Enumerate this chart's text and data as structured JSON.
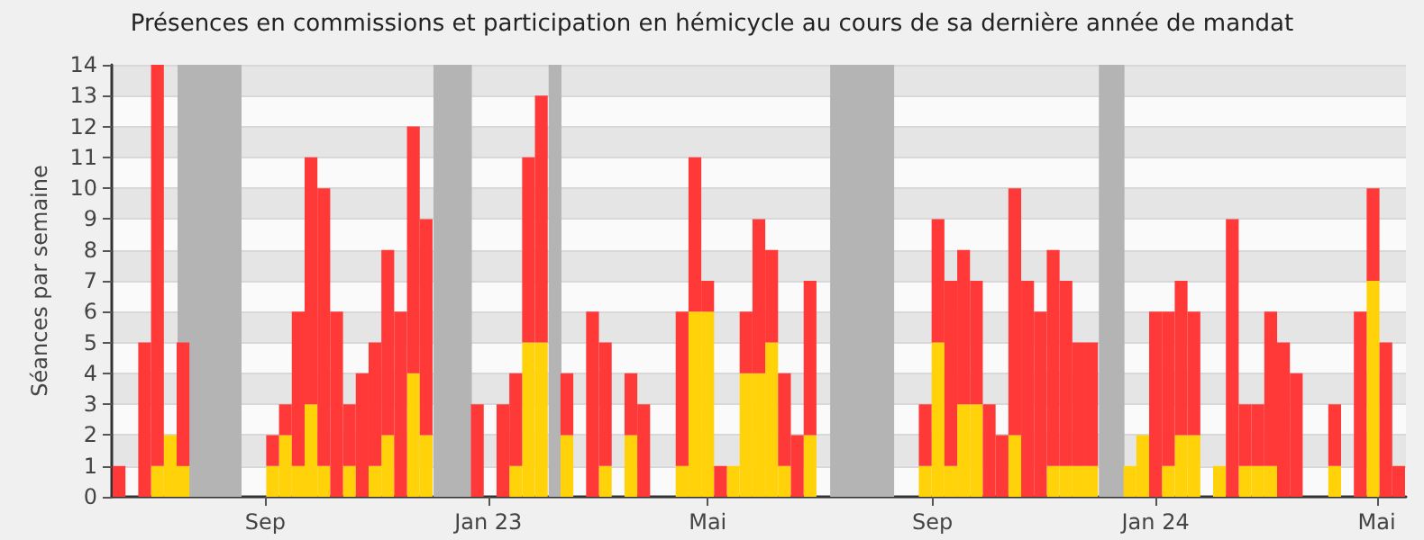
{
  "chart_data": {
    "type": "bar",
    "title": "Présences en commissions et participation en hémicycle au cours de sa dernière année de mandat",
    "ylabel": "Séances par semaine",
    "x": [
      "2022-06-13",
      "2022-06-20",
      "2022-06-27",
      "2022-07-04",
      "2022-07-11",
      "2022-07-18",
      "2022-07-25",
      "2022-08-01",
      "2022-08-08",
      "2022-08-15",
      "2022-08-22",
      "2022-08-29",
      "2022-09-05",
      "2022-09-12",
      "2022-09-19",
      "2022-09-26",
      "2022-10-03",
      "2022-10-10",
      "2022-10-17",
      "2022-10-24",
      "2022-10-31",
      "2022-11-07",
      "2022-11-14",
      "2022-11-21",
      "2022-11-28",
      "2022-12-05",
      "2022-12-12",
      "2022-12-19",
      "2022-12-26",
      "2023-01-02",
      "2023-01-09",
      "2023-01-16",
      "2023-01-23",
      "2023-01-30",
      "2023-02-06",
      "2023-02-13",
      "2023-02-20",
      "2023-02-27",
      "2023-03-06",
      "2023-03-13",
      "2023-03-20",
      "2023-03-27",
      "2023-04-03",
      "2023-04-10",
      "2023-04-17",
      "2023-04-24",
      "2023-05-01",
      "2023-05-08",
      "2023-05-15",
      "2023-05-22",
      "2023-05-29",
      "2023-06-05",
      "2023-06-12",
      "2023-06-19",
      "2023-06-26",
      "2023-07-03",
      "2023-07-10",
      "2023-07-17",
      "2023-07-24",
      "2023-07-31",
      "2023-08-07",
      "2023-08-14",
      "2023-08-21",
      "2023-08-28",
      "2023-09-04",
      "2023-09-11",
      "2023-09-18",
      "2023-09-25",
      "2023-10-02",
      "2023-10-09",
      "2023-10-16",
      "2023-10-23",
      "2023-10-30",
      "2023-11-06",
      "2023-11-13",
      "2023-11-20",
      "2023-11-27",
      "2023-12-04",
      "2023-12-11",
      "2023-12-18",
      "2023-12-25",
      "2024-01-01",
      "2024-01-08",
      "2024-01-15",
      "2024-01-22",
      "2024-01-29",
      "2024-02-05",
      "2024-02-12",
      "2024-02-19",
      "2024-02-26",
      "2024-03-04",
      "2024-03-11",
      "2024-03-18",
      "2024-03-25",
      "2024-04-01",
      "2024-04-08",
      "2024-04-15",
      "2024-04-22",
      "2024-04-29",
      "2024-05-06",
      "2024-05-13"
    ],
    "stacked": true,
    "series": [
      {
        "color": "#ffd20a",
        "values": [
          0,
          0,
          0,
          1,
          2,
          1,
          0,
          0,
          0,
          0,
          0,
          0,
          1,
          2,
          1,
          3,
          1,
          0,
          1,
          0,
          1,
          2,
          0,
          4,
          2,
          0,
          0,
          0,
          0,
          0,
          0,
          1,
          5,
          5,
          0,
          2,
          0,
          0,
          1,
          0,
          2,
          0,
          0,
          0,
          1,
          6,
          6,
          0,
          1,
          4,
          4,
          5,
          1,
          0,
          2,
          0,
          0,
          0,
          0,
          0,
          0,
          0,
          0,
          1,
          5,
          1,
          3,
          3,
          0,
          0,
          2,
          0,
          0,
          1,
          1,
          1,
          1,
          0,
          0,
          1,
          2,
          0,
          1,
          2,
          2,
          0,
          1,
          0,
          1,
          1,
          1,
          0,
          0,
          0,
          0,
          1,
          0,
          0,
          7,
          0,
          0
        ]
      },
      {
        "color": "#ff3838",
        "values": [
          1,
          0,
          5,
          13,
          0,
          4,
          0,
          0,
          0,
          0,
          0,
          0,
          1,
          1,
          5,
          8,
          9,
          6,
          2,
          4,
          4,
          6,
          6,
          8,
          7,
          0,
          0,
          0,
          3,
          0,
          3,
          3,
          6,
          8,
          0,
          2,
          0,
          6,
          4,
          0,
          2,
          3,
          0,
          0,
          5,
          5,
          1,
          1,
          0,
          2,
          5,
          3,
          3,
          2,
          5,
          0,
          0,
          0,
          0,
          0,
          0,
          0,
          0,
          2,
          4,
          6,
          5,
          4,
          3,
          2,
          8,
          7,
          6,
          7,
          6,
          4,
          4,
          0,
          0,
          0,
          0,
          6,
          5,
          5,
          4,
          0,
          0,
          9,
          2,
          2,
          5,
          5,
          4,
          0,
          0,
          2,
          0,
          6,
          3,
          5,
          1
        ]
      }
    ],
    "xlim": [
      "2022-06-09",
      "2024-05-17"
    ],
    "xticks": [
      {
        "value": "2022-09-01",
        "label": "Sep"
      },
      {
        "value": "2023-01-01",
        "label": "Jan 23"
      },
      {
        "value": "2023-05-01",
        "label": "Mai"
      },
      {
        "value": "2023-09-01",
        "label": "Sep"
      },
      {
        "value": "2024-01-01",
        "label": "Jan 24"
      },
      {
        "value": "2024-05-01",
        "label": "Mai"
      }
    ],
    "ylim": [
      0,
      14
    ],
    "yticks": [
      0,
      1,
      2,
      3,
      4,
      5,
      6,
      7,
      8,
      9,
      10,
      11,
      12,
      13,
      14
    ],
    "bands": [
      {
        "axis": "x",
        "from": "2022-07-15",
        "to": "2022-08-19",
        "color": "#b4b4b4"
      },
      {
        "axis": "x",
        "from": "2022-12-02",
        "to": "2022-12-23",
        "color": "#b4b4b4"
      },
      {
        "axis": "x",
        "from": "2023-02-03",
        "to": "2023-02-10",
        "color": "#b4b4b4"
      },
      {
        "axis": "x",
        "from": "2023-07-07",
        "to": "2023-08-11",
        "color": "#b4b4b4"
      },
      {
        "axis": "x",
        "from": "2023-12-01",
        "to": "2023-12-15",
        "color": "#b4b4b4"
      }
    ],
    "grid": "y"
  }
}
